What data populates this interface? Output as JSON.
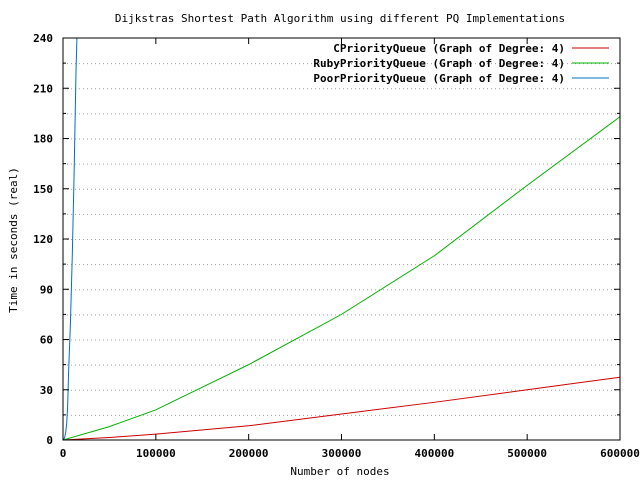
{
  "chart_data": {
    "type": "line",
    "title": "Dijkstras Shortest Path Algorithm using different PQ Implementations",
    "xlabel": "Number of nodes",
    "ylabel": "Time in seconds (real)",
    "xlim": [
      0,
      600000
    ],
    "ylim": [
      0,
      240
    ],
    "x_ticks": [
      0,
      100000,
      200000,
      300000,
      400000,
      500000,
      600000
    ],
    "x_tick_labels": [
      "0",
      "100000",
      "200000",
      "300000",
      "400000",
      "500000",
      "600000"
    ],
    "y_ticks": [
      0,
      30,
      60,
      90,
      120,
      150,
      180,
      210,
      240
    ],
    "y_tick_labels": [
      "0",
      "30",
      "60",
      "90",
      "120",
      "150",
      "180",
      "210",
      "240"
    ],
    "y_minor_gridlines": [
      15,
      45,
      75,
      105,
      135,
      165,
      195,
      225
    ],
    "grid": true,
    "legend_position": "top-right",
    "series": [
      {
        "name": "CPriorityQueue (Graph of Degree: 4)",
        "color": "#cc0000",
        "x": [
          0,
          50000,
          100000,
          200000,
          300000,
          400000,
          500000,
          600000
        ],
        "y": [
          0,
          1.5,
          3.5,
          8.5,
          15.5,
          22.5,
          30,
          37.5
        ]
      },
      {
        "name": "RubyPriorityQueue (Graph of Degree: 4)",
        "color": "#00b000",
        "x": [
          0,
          50000,
          100000,
          200000,
          300000,
          400000,
          500000,
          600000
        ],
        "y": [
          0,
          8,
          18,
          45,
          75,
          110,
          152,
          193
        ]
      },
      {
        "name": "PoorPriorityQueue (Graph of Degree: 4)",
        "color": "#0070c0",
        "x": [
          0,
          1000,
          2000,
          3000,
          4000,
          5000,
          6000,
          7000,
          8000,
          10000,
          12000,
          14000,
          15000
        ],
        "y": [
          0,
          0.5,
          2,
          5,
          10,
          20,
          40,
          55,
          70,
          110,
          160,
          220,
          240
        ]
      }
    ]
  }
}
